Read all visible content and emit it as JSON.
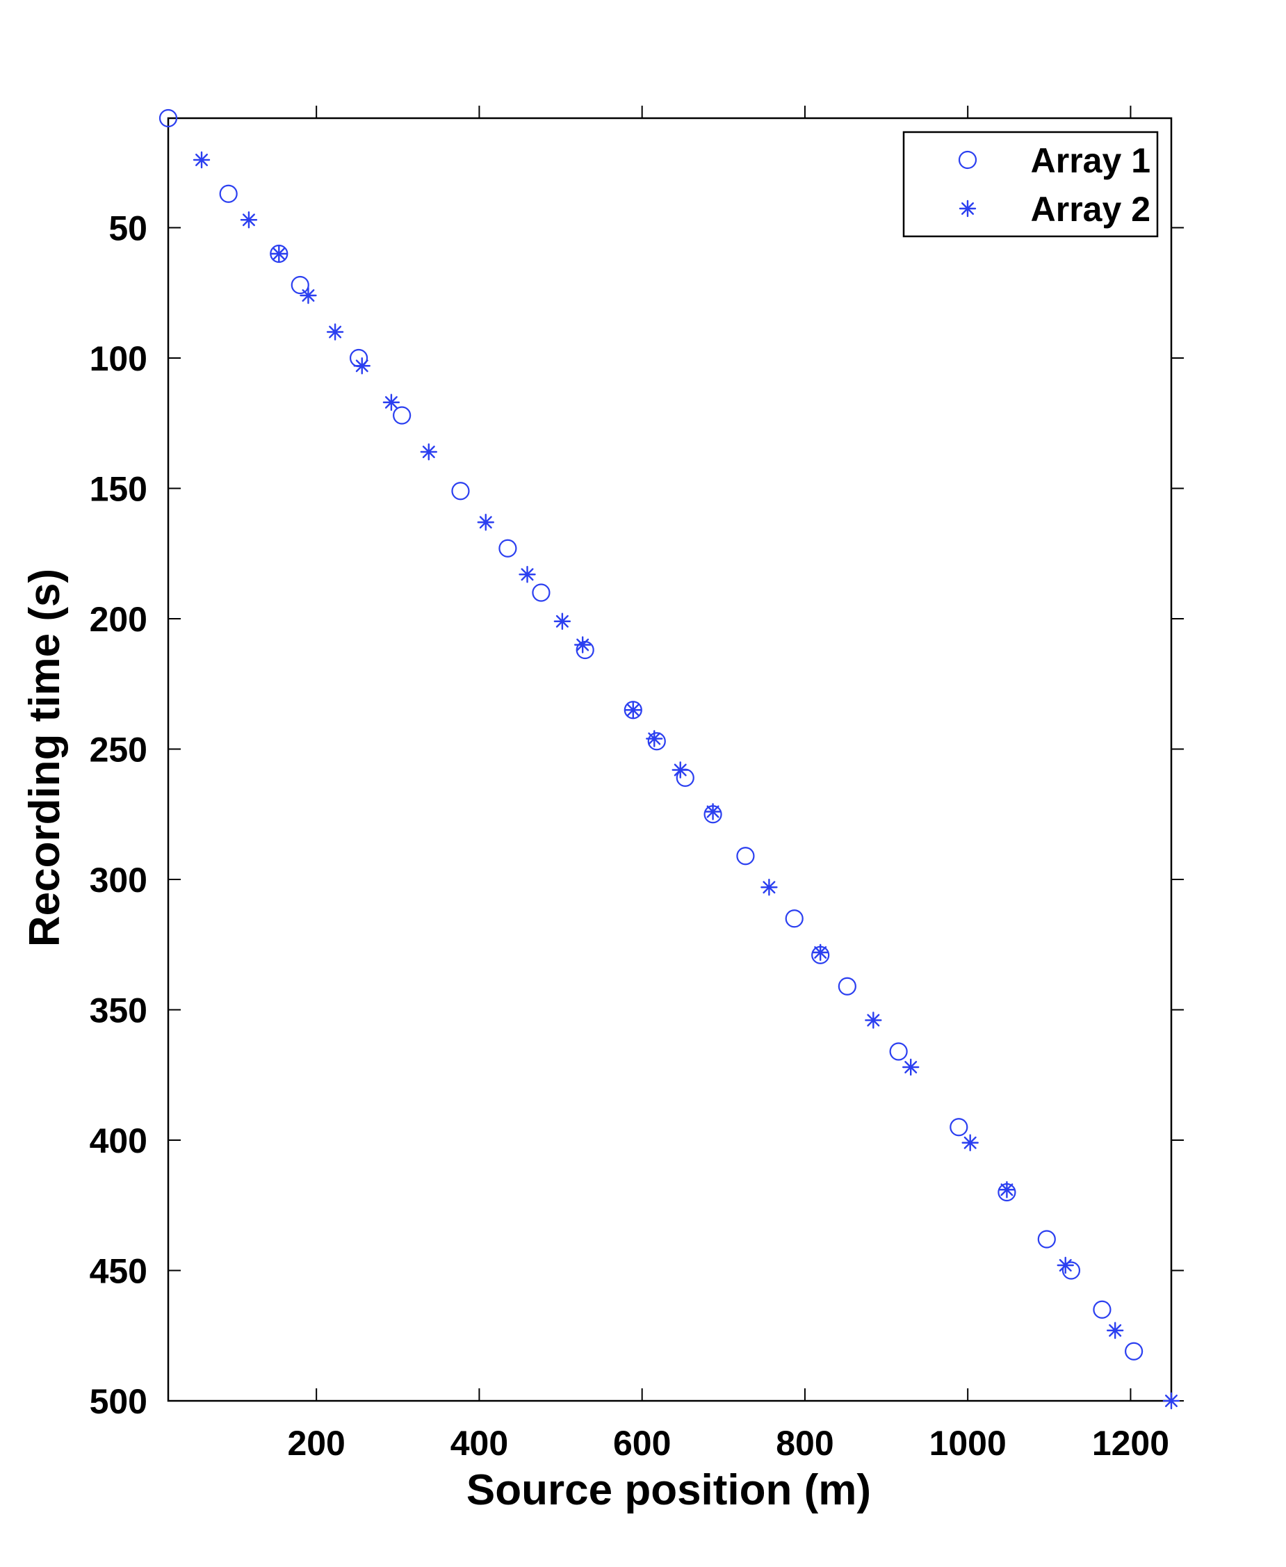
{
  "chart_data": {
    "type": "scatter",
    "xlabel": "Source position (m)",
    "ylabel": "Recording time (s)",
    "xlim": [
      18,
      1250
    ],
    "ylim": [
      500,
      8
    ],
    "y_inverted": true,
    "xticks": [
      200,
      400,
      600,
      800,
      1000,
      1200
    ],
    "yticks": [
      50,
      100,
      150,
      200,
      250,
      300,
      350,
      400,
      450,
      500
    ],
    "grid": false,
    "legend_position": "top-right",
    "marker_color": "#2b3ff0",
    "series": [
      {
        "name": "Array 1",
        "marker": "circle",
        "points": [
          [
            18,
            8
          ],
          [
            92,
            37
          ],
          [
            154,
            60
          ],
          [
            180,
            72
          ],
          [
            252,
            100
          ],
          [
            305,
            122
          ],
          [
            377,
            151
          ],
          [
            435,
            173
          ],
          [
            476,
            190
          ],
          [
            530,
            212
          ],
          [
            589,
            235
          ],
          [
            618,
            247
          ],
          [
            653,
            261
          ],
          [
            687,
            275
          ],
          [
            727,
            291
          ],
          [
            787,
            315
          ],
          [
            819,
            329
          ],
          [
            852,
            341
          ],
          [
            915,
            366
          ],
          [
            989,
            395
          ],
          [
            1048,
            420
          ],
          [
            1097,
            438
          ],
          [
            1127,
            450
          ],
          [
            1165,
            465
          ],
          [
            1204,
            481
          ]
        ]
      },
      {
        "name": "Array 2",
        "marker": "asterisk",
        "points": [
          [
            59,
            24
          ],
          [
            117,
            47
          ],
          [
            154,
            60
          ],
          [
            190,
            76
          ],
          [
            223,
            90
          ],
          [
            256,
            103
          ],
          [
            292,
            117
          ],
          [
            338,
            136
          ],
          [
            408,
            163
          ],
          [
            459,
            183
          ],
          [
            502,
            201
          ],
          [
            527,
            210
          ],
          [
            589,
            235
          ],
          [
            615,
            246
          ],
          [
            647,
            258
          ],
          [
            687,
            274
          ],
          [
            756,
            303
          ],
          [
            819,
            328
          ],
          [
            884,
            354
          ],
          [
            930,
            372
          ],
          [
            1003,
            401
          ],
          [
            1048,
            419
          ],
          [
            1120,
            448
          ],
          [
            1181,
            473
          ],
          [
            1250,
            500
          ]
        ]
      }
    ]
  }
}
